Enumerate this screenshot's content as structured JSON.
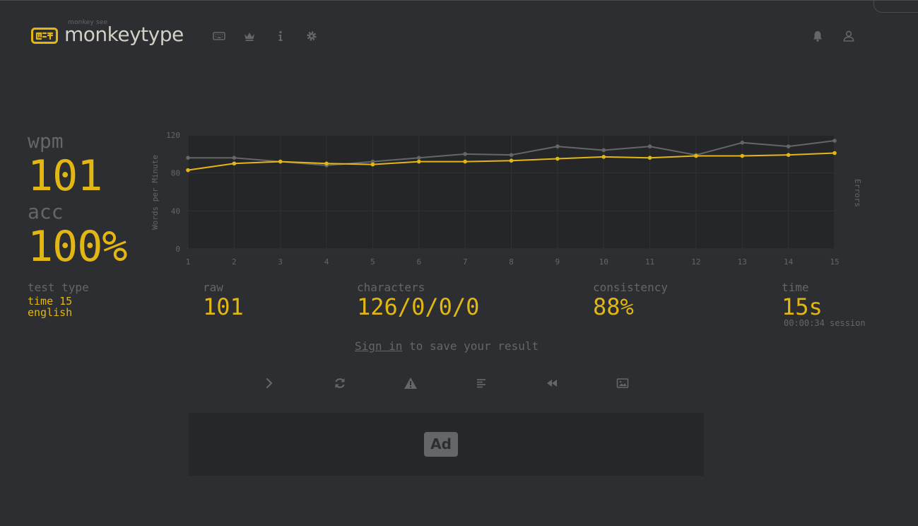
{
  "header": {
    "logo_top": "monkey see",
    "logo_main": "monkeytype",
    "nav": [
      {
        "name": "keyboard-icon"
      },
      {
        "name": "crown-icon"
      },
      {
        "name": "info-icon"
      },
      {
        "name": "gear-icon"
      }
    ],
    "right": [
      {
        "name": "bell-icon"
      },
      {
        "name": "user-icon"
      }
    ]
  },
  "result": {
    "wpm_label": "wpm",
    "wpm_value": "101",
    "acc_label": "acc",
    "acc_value": "100%",
    "test_type_label": "test type",
    "test_type_mode": "time 15",
    "test_type_language": "english",
    "raw_label": "raw",
    "raw_value": "101",
    "characters_label": "characters",
    "characters_value": "126/0/0/0",
    "consistency_label": "consistency",
    "consistency_value": "88%",
    "time_label": "time",
    "time_value": "15s",
    "session_time": "00:00:34 session"
  },
  "signin": {
    "link": "Sign in",
    "rest": " to save your result"
  },
  "actions": [
    {
      "name": "next-test-icon"
    },
    {
      "name": "restart-icon"
    },
    {
      "name": "warning-icon"
    },
    {
      "name": "words-history-icon"
    },
    {
      "name": "replay-icon"
    },
    {
      "name": "screenshot-icon"
    }
  ],
  "ad": {
    "label": "Ad"
  },
  "colors": {
    "bg": "#2c2e31",
    "main": "#e2b714",
    "sub": "#646669",
    "text": "#d1d0c5"
  },
  "chart_data": {
    "type": "line",
    "x": [
      1,
      2,
      3,
      4,
      5,
      6,
      7,
      8,
      9,
      10,
      11,
      12,
      13,
      14,
      15
    ],
    "ylim": [
      0,
      120
    ],
    "yticks": [
      0,
      40,
      80,
      120
    ],
    "ylabel": "Words per Minute",
    "y2label": "Errors",
    "grid": true,
    "series": [
      {
        "color": "#646669",
        "values": [
          96,
          96,
          92,
          88,
          92,
          96,
          100,
          99,
          108,
          104,
          108,
          99,
          112,
          108,
          114
        ]
      },
      {
        "color": "#e2b714",
        "values": [
          83,
          90,
          92,
          90,
          89,
          92,
          92,
          93,
          95,
          97,
          96,
          98,
          98,
          99,
          101
        ]
      }
    ]
  }
}
